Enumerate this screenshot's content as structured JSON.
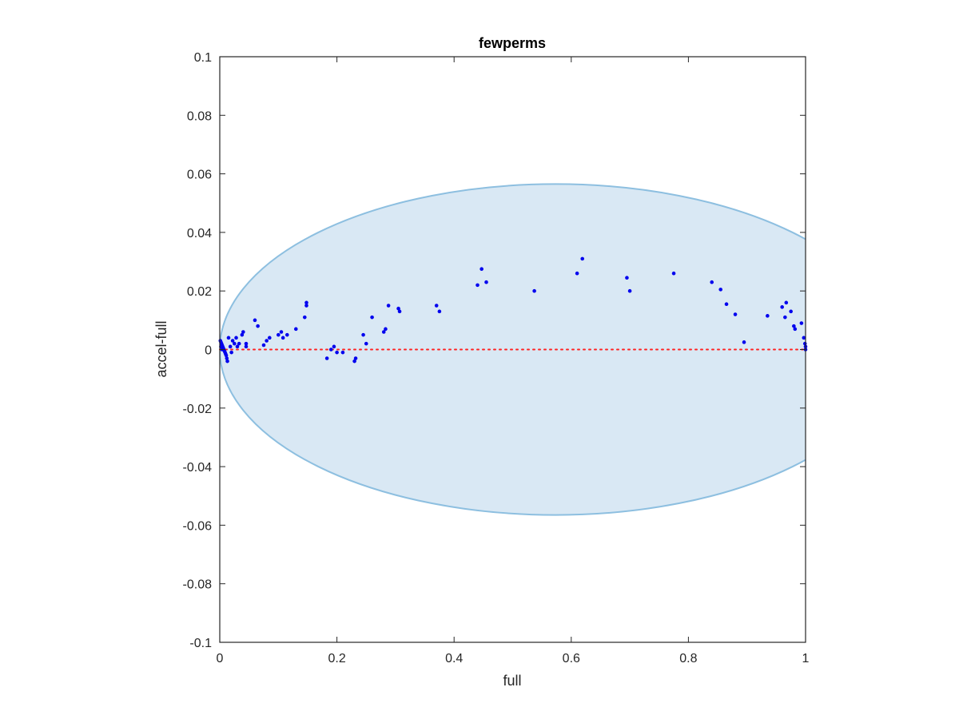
{
  "chart_data": {
    "type": "scatter",
    "title": "fewperms",
    "xlabel": "full",
    "ylabel": "accel-full",
    "xlim": [
      0,
      1
    ],
    "ylim": [
      -0.1,
      0.1
    ],
    "xticks": [
      0,
      0.2,
      0.4,
      0.6,
      0.8,
      1
    ],
    "xtick_labels": [
      "0",
      "0.2",
      "0.4",
      "0.6",
      "0.8",
      "1"
    ],
    "yticks": [
      -0.1,
      -0.08,
      -0.06,
      -0.04,
      -0.02,
      0,
      0.02,
      0.04,
      0.06,
      0.08,
      0.1
    ],
    "ytick_labels": [
      "-0.1",
      "-0.08",
      "-0.06",
      "-0.04",
      "-0.02",
      "0",
      "0.02",
      "0.04",
      "0.06",
      "0.08",
      "0.1"
    ],
    "grid": false,
    "colors": {
      "points": "#0000ee",
      "ellipse_fill": "#d9e8f4",
      "ellipse_edge": "#8dbfe0",
      "zero_line": "#ff2222",
      "axes": "#262626"
    },
    "ellipse": {
      "center": [
        0.573,
        0
      ],
      "semi_axis_x": 0.573,
      "semi_axis_y": 0.0565
    },
    "zero_line": {
      "y": 0,
      "style": "dotted"
    },
    "series": [
      {
        "points": [
          [
            0.001,
            0.003
          ],
          [
            0.002,
            0.0025
          ],
          [
            0.003,
            0.002
          ],
          [
            0.004,
            0.0015
          ],
          [
            0.005,
            0.001
          ],
          [
            0.006,
            0.0005
          ],
          [
            0.007,
            0.0
          ],
          [
            0.008,
            -0.0005
          ],
          [
            0.009,
            -0.001
          ],
          [
            0.01,
            -0.0015
          ],
          [
            0.011,
            -0.002
          ],
          [
            0.012,
            -0.003
          ],
          [
            0.013,
            -0.004
          ],
          [
            0.002,
            0.001
          ],
          [
            0.004,
            0.0
          ],
          [
            0.015,
            0.004
          ],
          [
            0.018,
            0.001
          ],
          [
            0.02,
            -0.001
          ],
          [
            0.022,
            0.003
          ],
          [
            0.025,
            0.002
          ],
          [
            0.028,
            0.004
          ],
          [
            0.03,
            0.001
          ],
          [
            0.033,
            0.002
          ],
          [
            0.038,
            0.005
          ],
          [
            0.04,
            0.006
          ],
          [
            0.045,
            0.001
          ],
          [
            0.045,
            0.002
          ],
          [
            0.06,
            0.01
          ],
          [
            0.065,
            0.008
          ],
          [
            0.075,
            0.0015
          ],
          [
            0.08,
            0.003
          ],
          [
            0.085,
            0.004
          ],
          [
            0.1,
            0.005
          ],
          [
            0.105,
            0.006
          ],
          [
            0.108,
            0.004
          ],
          [
            0.115,
            0.005
          ],
          [
            0.13,
            0.007
          ],
          [
            0.145,
            0.011
          ],
          [
            0.148,
            0.015
          ],
          [
            0.148,
            0.016
          ],
          [
            0.183,
            -0.003
          ],
          [
            0.19,
            0.0
          ],
          [
            0.195,
            0.001
          ],
          [
            0.2,
            -0.001
          ],
          [
            0.21,
            -0.001
          ],
          [
            0.23,
            -0.004
          ],
          [
            0.232,
            -0.003
          ],
          [
            0.245,
            0.005
          ],
          [
            0.25,
            0.002
          ],
          [
            0.26,
            0.011
          ],
          [
            0.28,
            0.006
          ],
          [
            0.283,
            0.007
          ],
          [
            0.288,
            0.015
          ],
          [
            0.305,
            0.014
          ],
          [
            0.307,
            0.013
          ],
          [
            0.37,
            0.015
          ],
          [
            0.375,
            0.013
          ],
          [
            0.44,
            0.022
          ],
          [
            0.447,
            0.0275
          ],
          [
            0.455,
            0.023
          ],
          [
            0.537,
            0.02
          ],
          [
            0.61,
            0.026
          ],
          [
            0.619,
            0.031
          ],
          [
            0.695,
            0.0245
          ],
          [
            0.7,
            0.02
          ],
          [
            0.775,
            0.026
          ],
          [
            0.84,
            0.023
          ],
          [
            0.855,
            0.0205
          ],
          [
            0.865,
            0.0155
          ],
          [
            0.88,
            0.012
          ],
          [
            0.895,
            0.0025
          ],
          [
            0.935,
            0.0115
          ],
          [
            0.96,
            0.0145
          ],
          [
            0.965,
            0.011
          ],
          [
            0.967,
            0.016
          ],
          [
            0.975,
            0.013
          ],
          [
            0.98,
            0.008
          ],
          [
            0.982,
            0.007
          ],
          [
            0.993,
            0.009
          ],
          [
            0.997,
            0.004
          ],
          [
            0.999,
            0.002
          ],
          [
            1.0,
            0.001
          ],
          [
            1.0,
            0.0
          ]
        ]
      }
    ]
  }
}
